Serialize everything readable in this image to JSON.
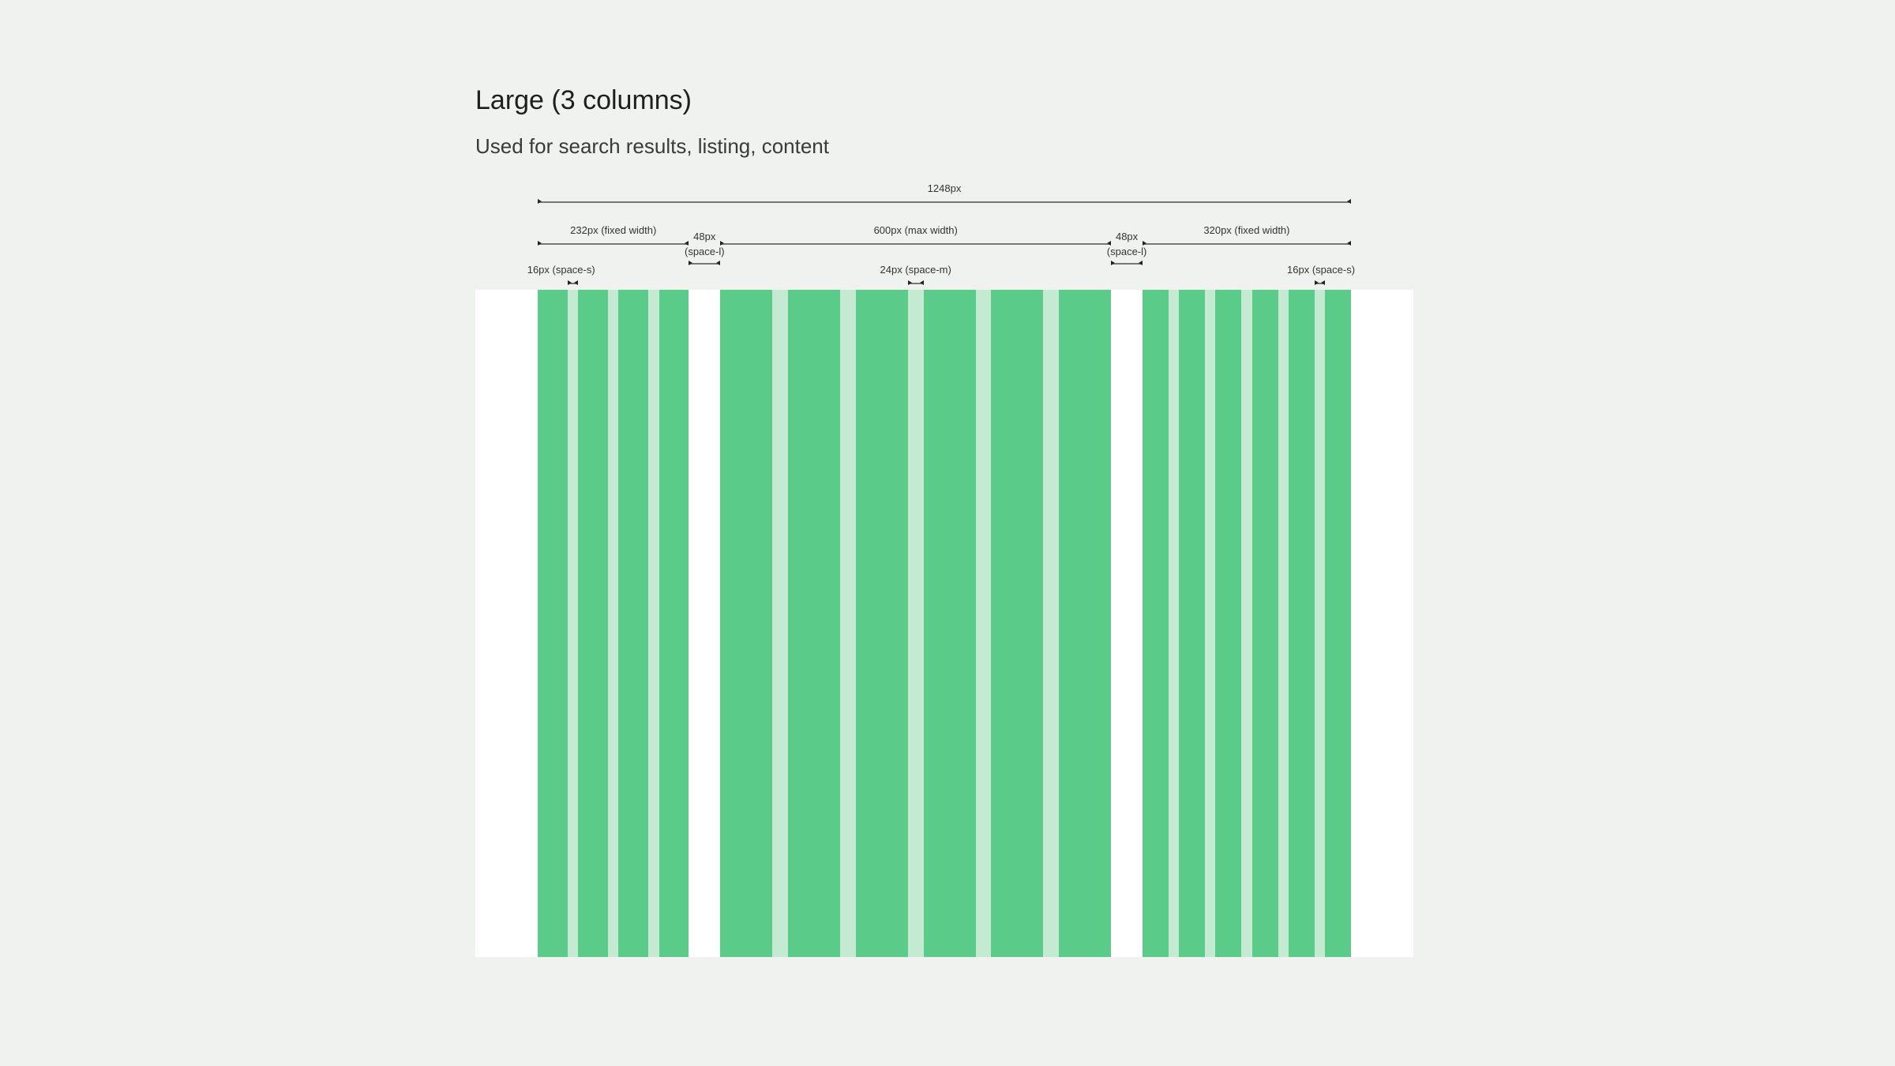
{
  "header": {
    "title": "Large (3 columns)",
    "subtitle": "Used for search results, listing, content"
  },
  "annotations": {
    "total": "1248px",
    "left_column": "232px (fixed width)",
    "gap_left_1": "48px",
    "gap_left_2": "(space-l)",
    "middle_column": "600px (max width)",
    "gap_right_1": "48px",
    "gap_right_2": "(space-l)",
    "right_column": "320px (fixed width)",
    "gutter_left": "16px (space-s)",
    "gutter_middle": "24px (space-m)",
    "gutter_right": "16px (space-s)"
  },
  "colors": {
    "background": "#f0f2ef",
    "panel": "#ffffff",
    "column": "#5acb88",
    "gutter": "#c4ead1"
  }
}
